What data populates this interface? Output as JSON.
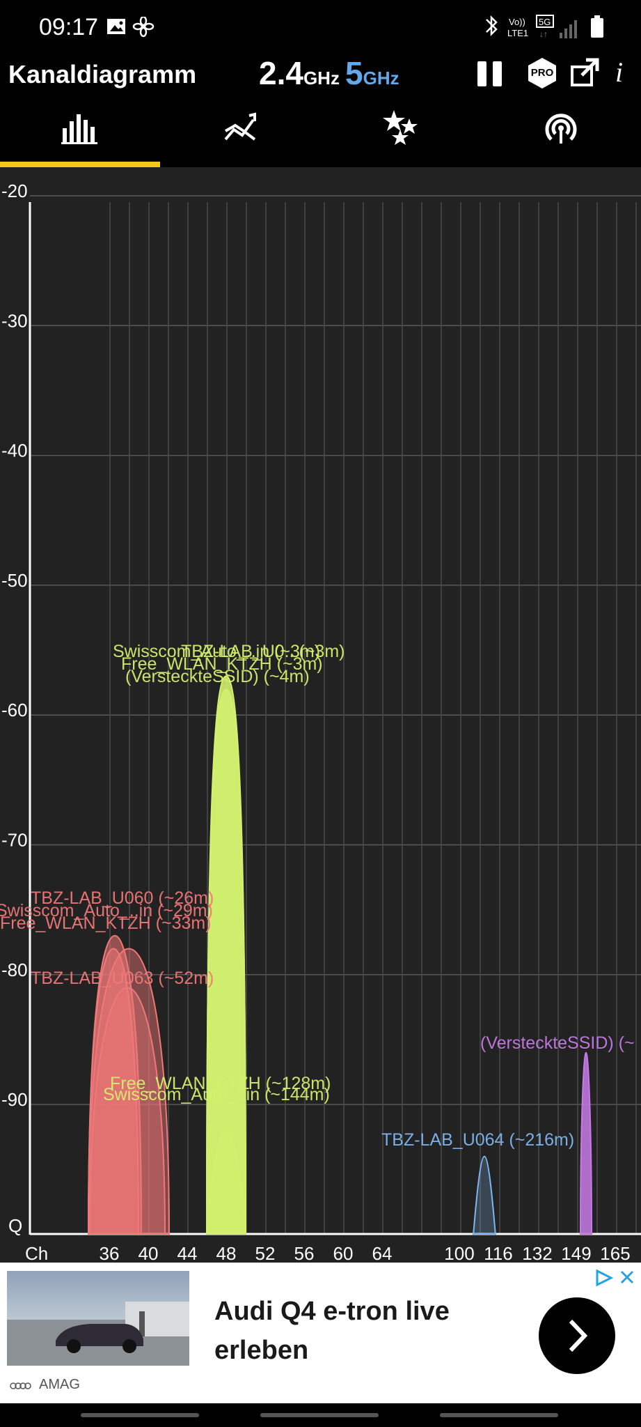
{
  "status_bar": {
    "time": "09:17",
    "left_icons": [
      "image-icon",
      "fan-icon"
    ],
    "right_icons": [
      "bluetooth-icon",
      "volte-lte1-icon",
      "5g-icon",
      "signal-icon",
      "battery-icon"
    ],
    "volte_text": "Vo)) LTE1",
    "network_text": "5G"
  },
  "app_bar": {
    "title": "Kanaldiagramm",
    "band_24": "2.4",
    "band_24_unit": "GHz",
    "band_5": "5",
    "band_5_unit": "GHz",
    "pro_label": "PRO",
    "info_label": "i"
  },
  "tabs": [
    {
      "name": "channel-graph",
      "icon": "bar-chart-icon",
      "active": true
    },
    {
      "name": "time-graph",
      "icon": "line-chart-icon",
      "active": false
    },
    {
      "name": "channel-rating",
      "icon": "stars-icon",
      "active": false
    },
    {
      "name": "access-points",
      "icon": "wifi-signal-icon",
      "active": false
    }
  ],
  "chart_data": {
    "type": "area",
    "ylabel": "",
    "xlabel": "Ch",
    "y_ticks": [
      "-20",
      "-30",
      "-40",
      "-50",
      "-60",
      "-70",
      "-80",
      "-90"
    ],
    "y_bottom_label": "Q",
    "ylim": [
      -100,
      -20
    ],
    "x_ticks": [
      "36",
      "40",
      "44",
      "48",
      "52",
      "56",
      "60",
      "64",
      "100",
      "116",
      "132",
      "149",
      "165"
    ],
    "grid": true,
    "networks": [
      {
        "label": "TBZ-LAB_U060 (~26m)",
        "channel": "36-40",
        "signal": -77,
        "color": "#f07878"
      },
      {
        "label": "Swisscom_Auto_..in (~29m)",
        "channel": "36-40",
        "signal": -78,
        "color": "#f07878"
      },
      {
        "label": "Free_WLAN_KTZH (~33m)",
        "channel": "36-40",
        "signal": -78,
        "color": "#f07878"
      },
      {
        "label": "TBZ-LAB_U063 (~52m)",
        "channel": "36-40",
        "signal": -81,
        "color": "#f07878"
      },
      {
        "label": "Swisscom_Auto_..in (~3m)",
        "channel": "48",
        "signal": -57,
        "color": "#d2f06e"
      },
      {
        "label": "TBZ-LAB_U0.. (~3m)",
        "channel": "48",
        "signal": -57,
        "color": "#d2f06e"
      },
      {
        "label": "Free_WLAN_KTZH (~3m)",
        "channel": "48",
        "signal": -57,
        "color": "#d2f06e"
      },
      {
        "label": "(VersteckteSSID) (~4m)",
        "channel": "48",
        "signal": -58,
        "color": "#d2f06e"
      },
      {
        "label": "Free_WLAN_KTZH (~128m)",
        "channel": "48",
        "signal": -92,
        "color": "#d2f06e"
      },
      {
        "label": "Swisscom_Auto_..in (~144m)",
        "channel": "48",
        "signal": -93,
        "color": "#d2f06e"
      },
      {
        "label": "TBZ-LAB_U064 (~216m)",
        "channel": "108",
        "signal": -94,
        "color": "#7fb6f0"
      },
      {
        "label": "(VersteckteSSID) (~",
        "channel": "149",
        "signal": -86,
        "color": "#c67ae6"
      }
    ]
  },
  "ad": {
    "headline": "Audi Q4 e-tron live erleben",
    "brand": "AMAG",
    "badge_icons": [
      "adchoices-icon",
      "close-icon"
    ],
    "cta_icon": "chevron-right-icon"
  },
  "colors": {
    "background": "#222222",
    "accent_tab": "#f2c81b",
    "band5": "#64a8ec",
    "red_group": "#f07878",
    "green_group": "#d2f06e",
    "blue_group": "#7fb6f0",
    "purple_group": "#c67ae6"
  }
}
